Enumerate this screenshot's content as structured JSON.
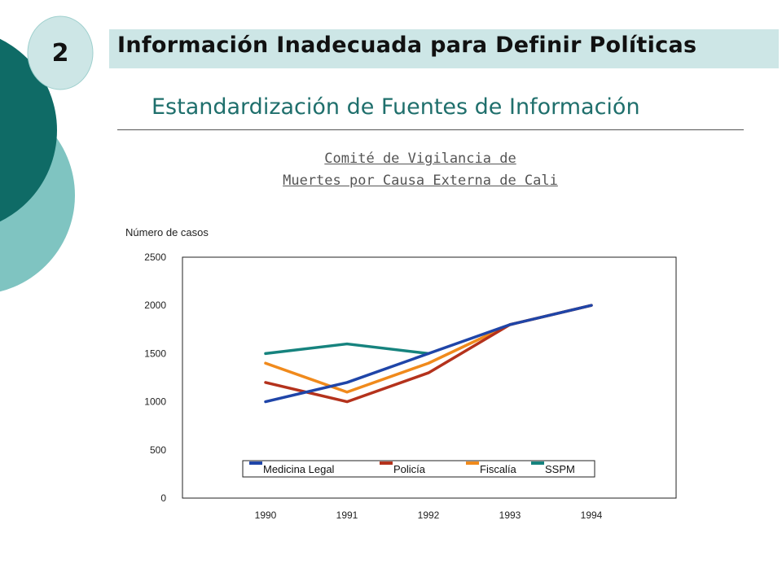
{
  "slide": {
    "number": "2",
    "title": "Información Inadecuada para Definir Políticas"
  },
  "subtitle": "Estandardización de Fuentes de Información",
  "committee": {
    "line1": "Comité de Vigilancia de",
    "line2": "Muertes por Causa Externa de Cali"
  },
  "theme": {
    "dark": "#0f6b66",
    "light": "#7fc4c1",
    "title_bg": "#cde6e6",
    "subtitle_color": "#1f6f6c"
  },
  "chart_data": {
    "type": "line",
    "title": "",
    "ylabel": "Número de casos",
    "xlabel": "",
    "categories": [
      "1990",
      "1991",
      "1992",
      "1993",
      "1994"
    ],
    "ylim": [
      0,
      2500
    ],
    "yticks": [
      0,
      500,
      1000,
      1500,
      2000,
      2500
    ],
    "grid": false,
    "legend": "bottom-center inside plot",
    "series": [
      {
        "name": "Medicina Legal",
        "color": "#1f45a8",
        "values": [
          1000,
          1200,
          1500,
          1800,
          2000
        ]
      },
      {
        "name": "Policía",
        "color": "#b4321c",
        "values": [
          1200,
          1000,
          1300,
          1800,
          2000
        ]
      },
      {
        "name": "Fiscalía",
        "color": "#f08a1c",
        "values": [
          1400,
          1100,
          1400,
          1800,
          2000
        ]
      },
      {
        "name": "SSPM",
        "color": "#16837e",
        "values": [
          1500,
          1600,
          1500,
          null,
          null
        ]
      }
    ]
  }
}
